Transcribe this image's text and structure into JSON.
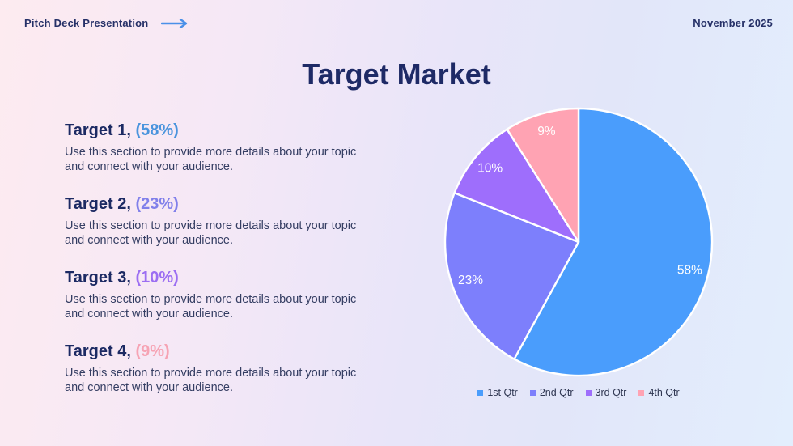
{
  "header": {
    "brand": "Pitch Deck Presentation",
    "date": "November 2025",
    "arrow_icon": "right-arrow",
    "arrow_color": "#4a90e8"
  },
  "title": "Target Market",
  "targets": {
    "items": [
      {
        "name": "Target 1,",
        "pct": "(58%)",
        "accent": "#4a94dd",
        "desc": "Use this section to provide more details about your topic and connect with your audience."
      },
      {
        "name": "Target 2,",
        "pct": "(23%)",
        "accent": "#8180ea",
        "desc": "Use this section to provide more details about your topic and connect with your audience."
      },
      {
        "name": "Target 3,",
        "pct": "(10%)",
        "accent": "#9c6ef2",
        "desc": "Use this section to provide more details about your topic and connect with your audience."
      },
      {
        "name": "Target 4,",
        "pct": "(9%)",
        "accent": "#f6a3b4",
        "desc": "Use this section to provide more details about your topic and connect with your audience."
      }
    ]
  },
  "chart_data": {
    "type": "pie",
    "categories": [
      "1st Qtr",
      "2nd Qtr",
      "3rd Qtr",
      "4th Qtr"
    ],
    "values": [
      58,
      23,
      10,
      9
    ],
    "slice_labels": [
      "58%",
      "23%",
      "10%",
      "9%"
    ],
    "colors": [
      "#4a9dfc",
      "#7d7ffc",
      "#9e6efc",
      "#ffa3b3"
    ],
    "start_angle_deg": 0,
    "direction": "clockwise",
    "slice_border_color": "#ffffff",
    "label_color": "#ffffff",
    "legend_position": "bottom"
  }
}
